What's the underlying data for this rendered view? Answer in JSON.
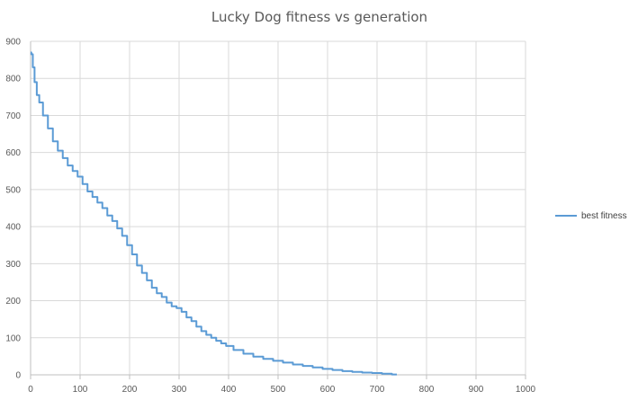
{
  "chart_data": {
    "type": "line",
    "title": "Lucky Dog fitness vs generation",
    "xlabel": "",
    "ylabel": "",
    "xlim": [
      0,
      1000
    ],
    "ylim": [
      0,
      900
    ],
    "x_ticks": [
      "0",
      "100",
      "200",
      "300",
      "400",
      "500",
      "600",
      "700",
      "800",
      "900",
      "1000"
    ],
    "y_ticks": [
      "0",
      "100",
      "200",
      "300",
      "400",
      "500",
      "600",
      "700",
      "800",
      "900"
    ],
    "grid": true,
    "legend_position": "right",
    "line_color": "#5b9bd5",
    "series": [
      {
        "name": "best fitness",
        "x": [
          0,
          3,
          6,
          10,
          15,
          20,
          30,
          40,
          50,
          60,
          70,
          80,
          90,
          100,
          110,
          120,
          130,
          140,
          150,
          160,
          170,
          180,
          190,
          200,
          210,
          220,
          230,
          240,
          250,
          260,
          270,
          280,
          290,
          300,
          310,
          320,
          330,
          340,
          350,
          360,
          370,
          380,
          390,
          400,
          420,
          440,
          460,
          480,
          500,
          520,
          540,
          560,
          580,
          600,
          620,
          640,
          660,
          680,
          700,
          720,
          740
        ],
        "y": [
          870,
          865,
          830,
          790,
          755,
          735,
          700,
          665,
          630,
          605,
          585,
          565,
          550,
          535,
          515,
          495,
          480,
          465,
          450,
          430,
          415,
          395,
          375,
          350,
          325,
          295,
          275,
          255,
          235,
          220,
          210,
          195,
          185,
          180,
          170,
          155,
          145,
          130,
          118,
          108,
          100,
          92,
          85,
          78,
          67,
          57,
          49,
          43,
          38,
          33,
          28,
          24,
          20,
          16,
          13,
          10,
          8,
          6,
          5,
          3,
          1
        ]
      }
    ]
  }
}
